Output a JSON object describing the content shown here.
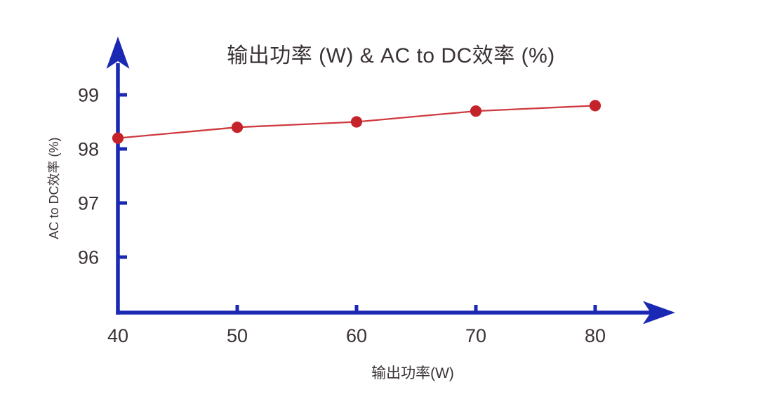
{
  "page": {
    "background": "#ffffff"
  },
  "colors": {
    "axis_blue": "#1b28b4",
    "line_red": "#cf3a40",
    "point_red": "#c4232a",
    "text_dark": "#3a3132"
  },
  "chart_data": {
    "type": "line",
    "title": "输出功率 (W) & AC to DC效率 (%)",
    "xlabel": "输出功率(W)",
    "ylabel": "AC to DC效率 (%)",
    "x": [
      40,
      50,
      60,
      70,
      80
    ],
    "series": [
      {
        "name": "AC to DC效率 (%)",
        "values": [
          98.2,
          98.4,
          98.5,
          98.7,
          98.8
        ]
      }
    ],
    "x_ticks": [
      40,
      50,
      60,
      70,
      80
    ],
    "y_ticks": [
      96,
      97,
      98,
      99
    ],
    "xlim": [
      40,
      86
    ],
    "ylim": [
      95,
      99.6
    ],
    "grid": false,
    "legend": false,
    "marker": "circle",
    "axis_color": "#1b28b4",
    "line_color": "#cf3a40",
    "marker_color": "#c4232a"
  }
}
